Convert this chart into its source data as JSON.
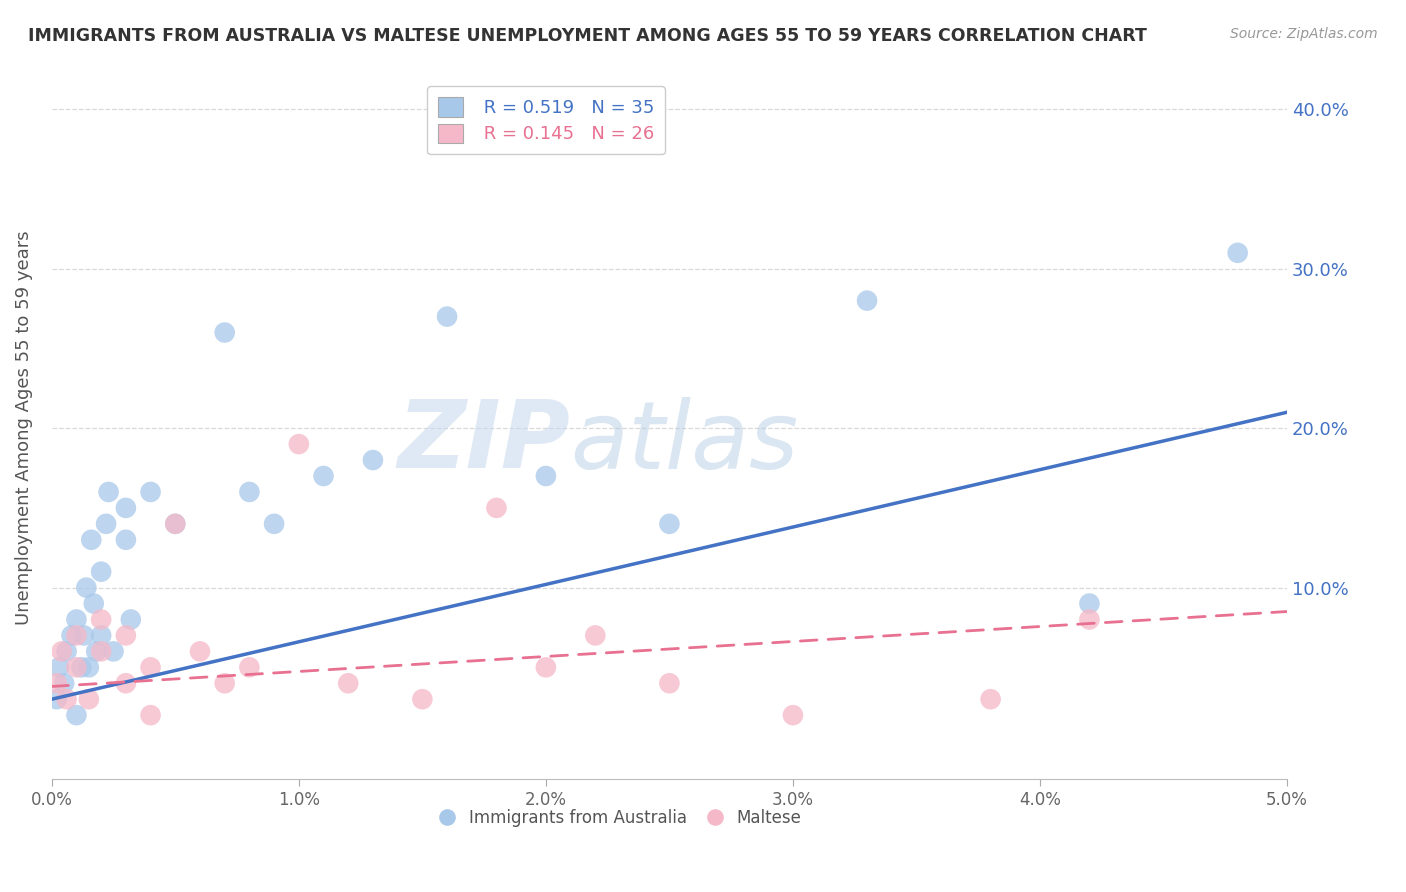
{
  "title": "IMMIGRANTS FROM AUSTRALIA VS MALTESE UNEMPLOYMENT AMONG AGES 55 TO 59 YEARS CORRELATION CHART",
  "source": "Source: ZipAtlas.com",
  "ylabel": "Unemployment Among Ages 55 to 59 years",
  "xlim": [
    0.0,
    0.05
  ],
  "ylim": [
    -0.02,
    0.42
  ],
  "xticks": [
    0.0,
    0.01,
    0.02,
    0.03,
    0.04,
    0.05
  ],
  "xtick_labels": [
    "0.0%",
    "1.0%",
    "2.0%",
    "3.0%",
    "4.0%",
    "5.0%"
  ],
  "yticks": [
    0.1,
    0.2,
    0.3,
    0.4
  ],
  "ytick_labels": [
    "10.0%",
    "20.0%",
    "30.0%",
    "40.0%"
  ],
  "legend1_R": "0.519",
  "legend1_N": "35",
  "legend2_R": "0.145",
  "legend2_N": "26",
  "series1_color": "#a8c8ea",
  "series2_color": "#f5b8c8",
  "trendline1_color": "#4472c4",
  "trendline2_color": "#e87090",
  "background_color": "#ffffff",
  "grid_color": "#d0d0d0",
  "watermark_zip": "ZIP",
  "watermark_atlas": "atlas",
  "series1_x": [
    0.0002,
    0.0003,
    0.0005,
    0.0006,
    0.0008,
    0.001,
    0.001,
    0.0012,
    0.0013,
    0.0014,
    0.0015,
    0.0016,
    0.0017,
    0.0018,
    0.002,
    0.002,
    0.0022,
    0.0023,
    0.0025,
    0.003,
    0.003,
    0.0032,
    0.004,
    0.005,
    0.007,
    0.008,
    0.009,
    0.011,
    0.013,
    0.016,
    0.02,
    0.025,
    0.033,
    0.042,
    0.048
  ],
  "series1_y": [
    0.03,
    0.05,
    0.04,
    0.06,
    0.07,
    0.02,
    0.08,
    0.05,
    0.07,
    0.1,
    0.05,
    0.13,
    0.09,
    0.06,
    0.11,
    0.07,
    0.14,
    0.16,
    0.06,
    0.13,
    0.15,
    0.08,
    0.16,
    0.14,
    0.26,
    0.16,
    0.14,
    0.17,
    0.18,
    0.27,
    0.17,
    0.14,
    0.28,
    0.09,
    0.31
  ],
  "series2_x": [
    0.0002,
    0.0004,
    0.0006,
    0.001,
    0.001,
    0.0015,
    0.002,
    0.002,
    0.003,
    0.003,
    0.004,
    0.004,
    0.005,
    0.006,
    0.007,
    0.008,
    0.01,
    0.012,
    0.015,
    0.018,
    0.02,
    0.022,
    0.025,
    0.03,
    0.038,
    0.042
  ],
  "series2_y": [
    0.04,
    0.06,
    0.03,
    0.05,
    0.07,
    0.03,
    0.06,
    0.08,
    0.04,
    0.07,
    0.02,
    0.05,
    0.14,
    0.06,
    0.04,
    0.05,
    0.19,
    0.04,
    0.03,
    0.15,
    0.05,
    0.07,
    0.04,
    0.02,
    0.03,
    0.08
  ],
  "trendline1_x": [
    0.0,
    0.05
  ],
  "trendline1_y": [
    0.03,
    0.21
  ],
  "trendline2_x": [
    0.0,
    0.05
  ],
  "trendline2_y": [
    0.038,
    0.085
  ]
}
